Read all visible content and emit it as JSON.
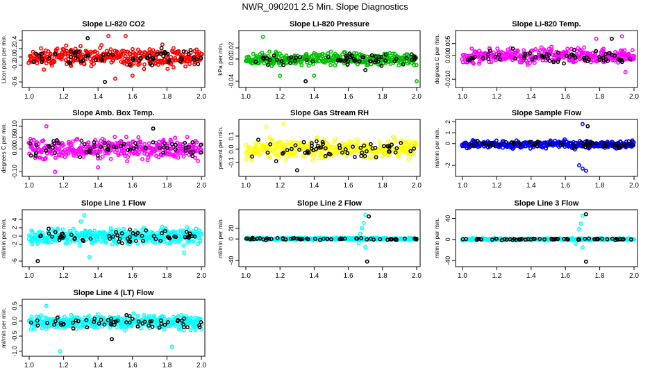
{
  "page_title": "NWR_090201  2.5 Min. Slope Diagnostics",
  "chart_data": [
    {
      "type": "scatter",
      "title": "Slope Li-820 CO2",
      "ylabel": "Licor ppm per min.",
      "color": "#ff0000",
      "xlim": [
        1.0,
        2.0
      ],
      "ylim": [
        -0.65,
        0.55
      ],
      "spread": 0.18,
      "seed": 11,
      "xticks": [
        "1.0",
        "1.2",
        "1.4",
        "1.6",
        "1.8",
        "2.0"
      ],
      "yticks": [
        {
          "v": -0.6,
          "label": "-0.6"
        },
        {
          "v": -0.2,
          "label": "-0.2"
        },
        {
          "v": 0.0,
          "label": "0.0"
        },
        {
          "v": 0.2,
          "label": "0.2"
        },
        {
          "v": 0.4,
          "label": "0.4"
        }
      ],
      "outliers": [
        [
          1.46,
          0.5
        ],
        [
          1.56,
          0.5
        ],
        [
          1.44,
          -0.6
        ],
        [
          1.5,
          -0.52
        ],
        [
          1.6,
          -0.45
        ],
        [
          1.34,
          0.45
        ]
      ]
    },
    {
      "type": "scatter",
      "title": "Slope Li-820 Pressure",
      "ylabel": "kPa per min.",
      "color": "#00c000",
      "xlim": [
        1.0,
        2.0
      ],
      "ylim": [
        -0.045,
        0.045
      ],
      "spread": 0.009,
      "seed": 23,
      "xticks": [
        "1.0",
        "1.2",
        "1.4",
        "1.6",
        "1.8",
        "2.0"
      ],
      "yticks": [
        {
          "v": -0.04,
          "label": "-0.04"
        },
        {
          "v": 0.0,
          "label": "0.00"
        },
        {
          "v": 0.02,
          "label": "0.02"
        }
      ],
      "outliers": [
        [
          1.1,
          0.04
        ],
        [
          1.2,
          -0.03
        ],
        [
          1.35,
          -0.04
        ],
        [
          2.0,
          -0.04
        ],
        [
          1.4,
          -0.03
        ],
        [
          1.7,
          -0.02
        ]
      ]
    },
    {
      "type": "scatter",
      "title": "Slope Li-820 Temp.",
      "ylabel": "degrees C per min.",
      "color": "#ff00ff",
      "xlim": [
        1.0,
        2.0
      ],
      "ylim": [
        -0.012,
        0.009
      ],
      "spread": 0.0025,
      "seed": 37,
      "xticks": [
        "1.0",
        "1.2",
        "1.4",
        "1.6",
        "1.8",
        "2.0"
      ],
      "yticks": [
        {
          "v": -0.01,
          "label": "-0.010"
        },
        {
          "v": 0.0,
          "label": "0.000"
        },
        {
          "v": 0.005,
          "label": "0.005"
        }
      ],
      "outliers": [
        [
          1.93,
          0.008
        ],
        [
          1.95,
          -0.007
        ],
        [
          1.87,
          0.007
        ],
        [
          1.78,
          0.007
        ]
      ]
    },
    {
      "type": "scatter",
      "title": "Slope Amb. Box Temp.",
      "ylabel": "degrees C per min.",
      "color": "#ff00ff",
      "xlim": [
        1.0,
        2.0
      ],
      "ylim": [
        -0.105,
        0.115
      ],
      "spread": 0.035,
      "seed": 41,
      "xticks": [
        "1.0",
        "1.2",
        "1.4",
        "1.6",
        "1.8",
        "2.0"
      ],
      "yticks": [
        {
          "v": -0.1,
          "label": "-0.10"
        },
        {
          "v": 0.0,
          "label": "0.00"
        },
        {
          "v": 0.05,
          "label": "0.05"
        },
        {
          "v": 0.1,
          "label": "0.10"
        }
      ],
      "outliers": [
        [
          1.15,
          -0.1
        ],
        [
          1.4,
          -0.08
        ],
        [
          1.72,
          0.09
        ],
        [
          1.1,
          0.1
        ]
      ]
    },
    {
      "type": "scatter",
      "title": "Slope Gas Stream RH",
      "ylabel": "percent per min.",
      "color": "#ffff00",
      "xlim": [
        1.0,
        2.0
      ],
      "ylim": [
        -0.18,
        0.2
      ],
      "spread": 0.06,
      "seed": 53,
      "xticks": [
        "1.0",
        "1.2",
        "1.4",
        "1.6",
        "1.8",
        "2.0"
      ],
      "yticks": [
        {
          "v": -0.1,
          "label": "-0.1"
        },
        {
          "v": 0.0,
          "label": "0.0"
        },
        {
          "v": 0.1,
          "label": "0.1"
        }
      ],
      "outliers": [
        [
          1.22,
          0.19
        ],
        [
          1.12,
          0.17
        ],
        [
          1.3,
          -0.16
        ]
      ]
    },
    {
      "type": "scatter",
      "title": "Slope Sample Flow",
      "ylabel": "ml/min per min.",
      "color": "#0000ff",
      "xlim": [
        1.0,
        2.0
      ],
      "ylim": [
        -2.7,
        1.9
      ],
      "spread": 0.28,
      "seed": 67,
      "xticks": [
        "1.0",
        "1.2",
        "1.4",
        "1.6",
        "1.8",
        "2.0"
      ],
      "yticks": [
        {
          "v": -2,
          "label": "-2"
        },
        {
          "v": 0,
          "label": "0"
        },
        {
          "v": 1,
          "label": "1"
        },
        {
          "v": 2,
          "label": "2"
        }
      ],
      "outliers": [
        [
          1.7,
          -2.3
        ],
        [
          1.72,
          -2.5
        ],
        [
          1.73,
          1.6
        ],
        [
          1.7,
          1.8
        ],
        [
          1.68,
          -2.0
        ]
      ]
    },
    {
      "type": "scatter",
      "title": "Slope Line 1 Flow",
      "ylabel": "ml/min per min.",
      "color": "#00ffff",
      "xlim": [
        1.0,
        2.0
      ],
      "ylim": [
        -6.5,
        5.5
      ],
      "spread": 1.5,
      "seed": 79,
      "xticks": [
        "1.0",
        "1.2",
        "1.4",
        "1.6",
        "1.8",
        "2.0"
      ],
      "yticks": [
        {
          "v": -6,
          "label": "-6"
        },
        {
          "v": -2,
          "label": "-2"
        },
        {
          "v": 0,
          "label": "0"
        },
        {
          "v": 2,
          "label": "2"
        },
        {
          "v": 4,
          "label": "4"
        }
      ],
      "outliers": [
        [
          1.32,
          5.0
        ],
        [
          1.3,
          3.5
        ],
        [
          1.05,
          -6
        ],
        [
          1.35,
          -5
        ],
        [
          1.9,
          -4
        ]
      ]
    },
    {
      "type": "scatter",
      "title": "Slope Line 2 Flow",
      "ylabel": "ml/min per min.",
      "color": "#00ffff",
      "xlim": [
        1.0,
        2.0
      ],
      "ylim": [
        -45,
        48
      ],
      "spread": 1.5,
      "seed": 83,
      "xticks": [
        "1.0",
        "1.2",
        "1.4",
        "1.6",
        "1.8",
        "2.0"
      ],
      "yticks": [
        {
          "v": -40,
          "label": "-40"
        },
        {
          "v": 0,
          "label": "0"
        },
        {
          "v": 20,
          "label": "20"
        }
      ],
      "outliers": [
        [
          1.69,
          30
        ],
        [
          1.7,
          45
        ],
        [
          1.72,
          42
        ],
        [
          1.68,
          20
        ],
        [
          1.7,
          -15
        ],
        [
          1.71,
          -42
        ],
        [
          1.66,
          -8
        ],
        [
          1.67,
          10
        ]
      ]
    },
    {
      "type": "scatter",
      "title": "Slope Line 3 Flow",
      "ylabel": "ml/min per min.",
      "color": "#00ffff",
      "xlim": [
        1.0,
        2.0
      ],
      "ylim": [
        -45,
        50
      ],
      "spread": 1.5,
      "seed": 97,
      "xticks": [
        "1.0",
        "1.2",
        "1.4",
        "1.6",
        "1.8",
        "2.0"
      ],
      "yticks": [
        {
          "v": -40,
          "label": "-40"
        },
        {
          "v": 0,
          "label": "0"
        },
        {
          "v": 40,
          "label": "40"
        }
      ],
      "outliers": [
        [
          1.69,
          30
        ],
        [
          1.7,
          45
        ],
        [
          1.72,
          48
        ],
        [
          1.68,
          20
        ],
        [
          1.7,
          -15
        ],
        [
          1.72,
          -42
        ],
        [
          1.66,
          -8
        ]
      ]
    },
    {
      "type": "scatter",
      "title": "Slope Line 4 (LT) Flow",
      "ylabel": "ml/min per min.",
      "color": "#00ffff",
      "xlim": [
        1.0,
        2.0
      ],
      "ylim": [
        -1.05,
        0.6
      ],
      "spread": 0.18,
      "seed": 101,
      "xticks": [
        "1.0",
        "1.2",
        "1.4",
        "1.6",
        "1.8",
        "2.0"
      ],
      "yticks": [
        {
          "v": -1.0,
          "label": "-1.0"
        },
        {
          "v": -0.5,
          "label": "-0.5"
        },
        {
          "v": 0.0,
          "label": "0.0"
        },
        {
          "v": 0.5,
          "label": "0.5"
        }
      ],
      "outliers": [
        [
          1.18,
          -1.0
        ],
        [
          1.83,
          -0.85
        ],
        [
          1.48,
          -0.6
        ],
        [
          1.1,
          0.5
        ]
      ]
    }
  ]
}
